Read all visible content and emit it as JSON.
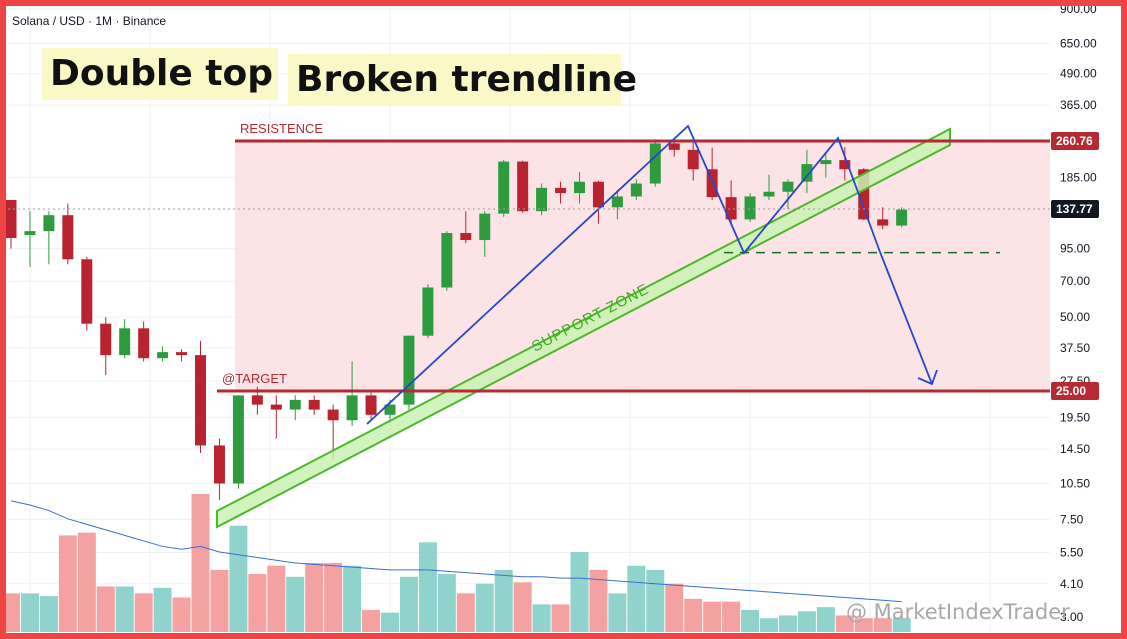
{
  "header": {
    "symbol": "Solana / USD · 1M · Binance"
  },
  "labels": {
    "double_top": "Double top",
    "broken_trendline": "Broken trendline",
    "resistance": "RESISTENCE",
    "target": "@TARGET",
    "support_zone": "SUPPORT ZONE"
  },
  "watermark": "@ MarketIndexTrader",
  "colors": {
    "up": "#2e9b3e",
    "down": "#b8232f",
    "vol_up": "#8fd3cc",
    "vol_down": "#f4a1a1",
    "band_fill": "#fbe3e6",
    "level_line": "#b52a33",
    "support_fill": "#c9f2b4",
    "support_stroke": "#4cb82a",
    "pattern_line": "#2747c7",
    "ma_line": "#3b6fd1",
    "frame": "#ef4444",
    "highlight_bg": "#fbf8c7"
  },
  "chart_data": {
    "type": "candlestick",
    "scale": "log",
    "price_axis_ticks": [
      "900.00",
      "650.00",
      "490.00",
      "365.00",
      "185.00",
      "95.00",
      "70.00",
      "50.00",
      "37.50",
      "27.50",
      "19.50",
      "14.50",
      "10.50",
      "7.50",
      "5.50",
      "4.10",
      "3.00"
    ],
    "price_labels": {
      "resistance": "260.76",
      "last": "137.77",
      "target": "25.00"
    },
    "levels": {
      "resistance": 260.76,
      "target": 25.0,
      "last": 137.77,
      "neckline": 95.0
    },
    "candles": [
      {
        "o": 150,
        "h": 150,
        "l": 95,
        "c": 105
      },
      {
        "o": 108,
        "h": 135,
        "l": 80,
        "c": 112
      },
      {
        "o": 112,
        "h": 135,
        "l": 82,
        "c": 130
      },
      {
        "o": 130,
        "h": 145,
        "l": 82,
        "c": 86
      },
      {
        "o": 86,
        "h": 88,
        "l": 44,
        "c": 47
      },
      {
        "o": 47,
        "h": 50,
        "l": 29,
        "c": 35
      },
      {
        "o": 35,
        "h": 49,
        "l": 34,
        "c": 45
      },
      {
        "o": 45,
        "h": 48,
        "l": 33,
        "c": 34
      },
      {
        "o": 34,
        "h": 38,
        "l": 33,
        "c": 36
      },
      {
        "o": 36,
        "h": 37,
        "l": 33,
        "c": 35
      },
      {
        "o": 35,
        "h": 40,
        "l": 14,
        "c": 15
      },
      {
        "o": 15,
        "h": 16,
        "l": 9,
        "c": 10.5
      },
      {
        "o": 10.5,
        "h": 24,
        "l": 10,
        "c": 24
      },
      {
        "o": 24,
        "h": 26,
        "l": 20,
        "c": 22
      },
      {
        "o": 22,
        "h": 24,
        "l": 16,
        "c": 21
      },
      {
        "o": 21,
        "h": 24,
        "l": 19,
        "c": 23
      },
      {
        "o": 23,
        "h": 24,
        "l": 20,
        "c": 21
      },
      {
        "o": 21,
        "h": 22,
        "l": 13,
        "c": 19
      },
      {
        "o": 19,
        "h": 33,
        "l": 18,
        "c": 24
      },
      {
        "o": 24,
        "h": 25,
        "l": 19,
        "c": 20
      },
      {
        "o": 20,
        "h": 23,
        "l": 18,
        "c": 22
      },
      {
        "o": 22,
        "h": 42,
        "l": 21,
        "c": 42
      },
      {
        "o": 42,
        "h": 68,
        "l": 41,
        "c": 66
      },
      {
        "o": 66,
        "h": 112,
        "l": 64,
        "c": 110
      },
      {
        "o": 110,
        "h": 135,
        "l": 100,
        "c": 103
      },
      {
        "o": 103,
        "h": 135,
        "l": 88,
        "c": 132
      },
      {
        "o": 132,
        "h": 218,
        "l": 128,
        "c": 215
      },
      {
        "o": 215,
        "h": 217,
        "l": 133,
        "c": 135
      },
      {
        "o": 135,
        "h": 175,
        "l": 130,
        "c": 168
      },
      {
        "o": 168,
        "h": 178,
        "l": 145,
        "c": 160
      },
      {
        "o": 160,
        "h": 195,
        "l": 145,
        "c": 178
      },
      {
        "o": 178,
        "h": 180,
        "l": 120,
        "c": 140
      },
      {
        "o": 140,
        "h": 165,
        "l": 125,
        "c": 155
      },
      {
        "o": 155,
        "h": 182,
        "l": 150,
        "c": 175
      },
      {
        "o": 175,
        "h": 265,
        "l": 170,
        "c": 255
      },
      {
        "o": 255,
        "h": 265,
        "l": 225,
        "c": 240
      },
      {
        "o": 240,
        "h": 265,
        "l": 180,
        "c": 200
      },
      {
        "o": 200,
        "h": 245,
        "l": 150,
        "c": 154
      },
      {
        "o": 154,
        "h": 180,
        "l": 118,
        "c": 125
      },
      {
        "o": 125,
        "h": 160,
        "l": 122,
        "c": 155
      },
      {
        "o": 155,
        "h": 190,
        "l": 150,
        "c": 162
      },
      {
        "o": 162,
        "h": 182,
        "l": 138,
        "c": 178
      },
      {
        "o": 178,
        "h": 240,
        "l": 160,
        "c": 210
      },
      {
        "o": 210,
        "h": 235,
        "l": 185,
        "c": 218
      },
      {
        "o": 218,
        "h": 246,
        "l": 180,
        "c": 200
      },
      {
        "o": 200,
        "h": 202,
        "l": 124,
        "c": 125
      },
      {
        "o": 125,
        "h": 140,
        "l": 114,
        "c": 118
      },
      {
        "o": 118,
        "h": 140,
        "l": 116,
        "c": 137
      }
    ],
    "volume": [
      0.28,
      0.28,
      0.26,
      0.7,
      0.72,
      0.33,
      0.33,
      0.28,
      0.32,
      0.25,
      1.0,
      0.45,
      0.77,
      0.42,
      0.48,
      0.4,
      0.5,
      0.5,
      0.48,
      0.16,
      0.14,
      0.4,
      0.65,
      0.42,
      0.28,
      0.35,
      0.45,
      0.36,
      0.2,
      0.2,
      0.58,
      0.45,
      0.28,
      0.48,
      0.45,
      0.35,
      0.24,
      0.22,
      0.22,
      0.16,
      0.1,
      0.12,
      0.15,
      0.18,
      0.12,
      0.1,
      0.1,
      0.1
    ],
    "volume_ma": [
      0.95,
      0.92,
      0.88,
      0.82,
      0.78,
      0.74,
      0.7,
      0.66,
      0.62,
      0.6,
      0.62,
      0.58,
      0.56,
      0.54,
      0.52,
      0.5,
      0.49,
      0.48,
      0.47,
      0.46,
      0.45,
      0.45,
      0.45,
      0.44,
      0.43,
      0.42,
      0.41,
      0.4,
      0.4,
      0.39,
      0.39,
      0.38,
      0.37,
      0.36,
      0.35,
      0.34,
      0.33,
      0.32,
      0.31,
      0.3,
      0.29,
      0.28,
      0.27,
      0.26,
      0.25,
      0.24,
      0.23,
      0.22
    ]
  }
}
